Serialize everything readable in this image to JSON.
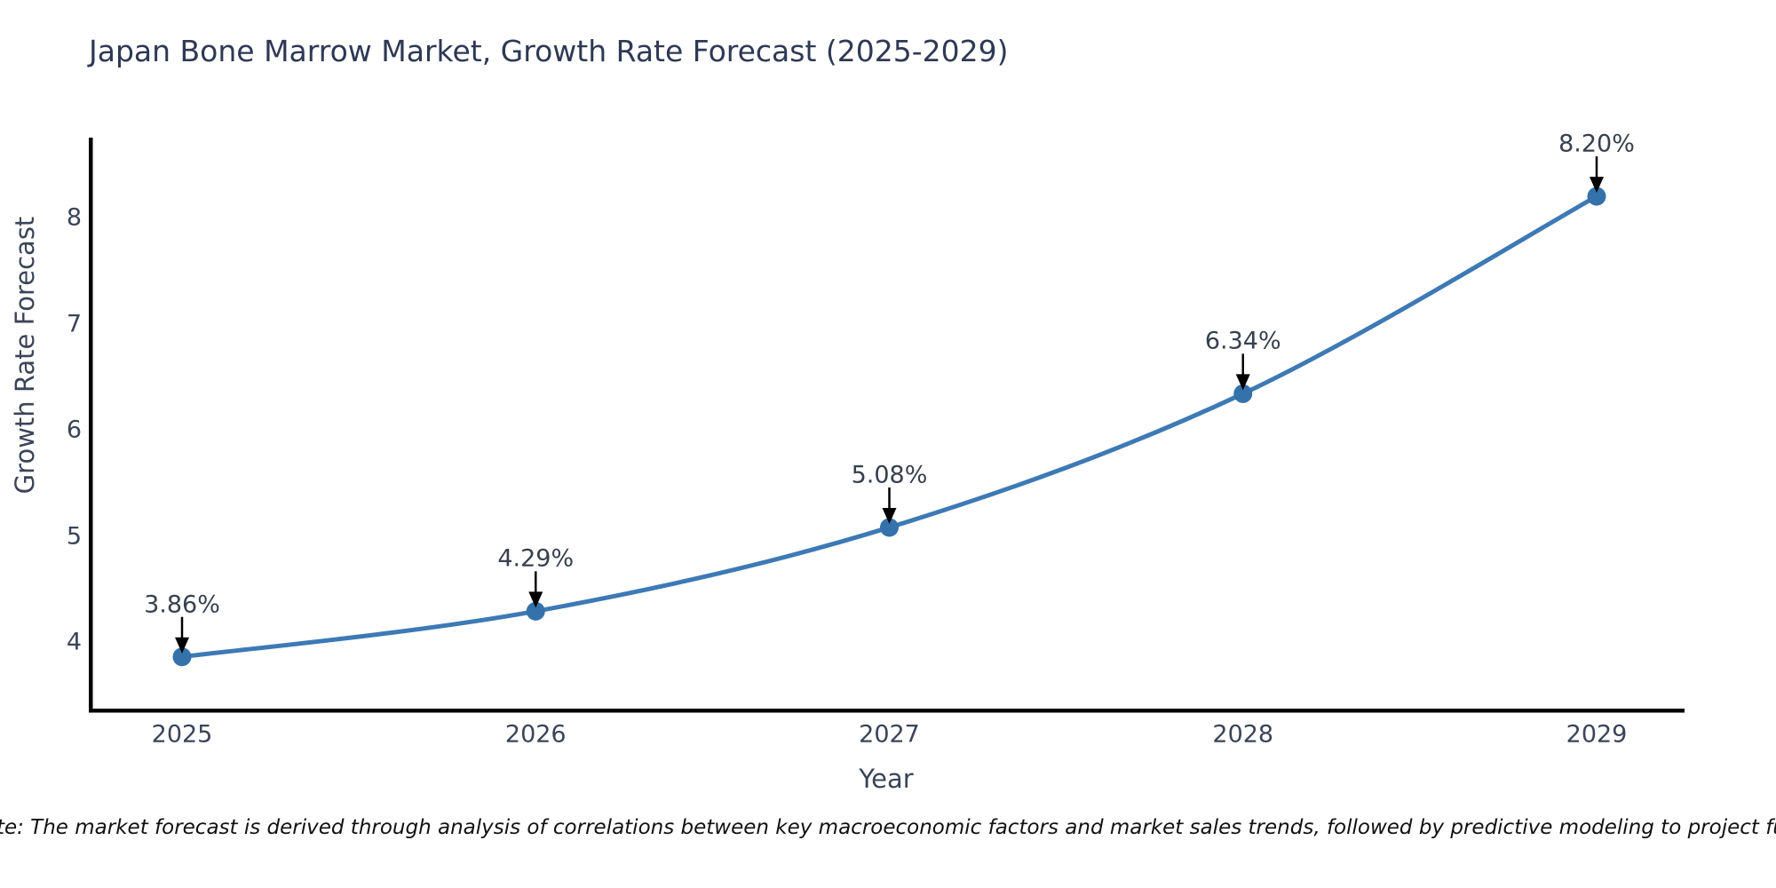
{
  "note": "Note: The market forecast is derived through analysis of correlations between key macroeconomic factors and market sales trends, followed by predictive modeling to project future sales.",
  "chart_data": {
    "type": "line",
    "title": "Japan Bone Marrow Market, Growth Rate Forecast (2025-2029)",
    "xlabel": "Year",
    "ylabel": "Growth Rate Forecast",
    "x": [
      "2025",
      "2026",
      "2027",
      "2028",
      "2029"
    ],
    "values": [
      3.86,
      4.29,
      5.08,
      6.34,
      8.2
    ],
    "point_labels": [
      "3.86%",
      "4.29%",
      "5.08%",
      "6.34%",
      "8.20%"
    ],
    "y_ticks": [
      4,
      5,
      6,
      7,
      8
    ],
    "ylim": [
      3.33,
      8.75
    ],
    "grid": false,
    "legend": false,
    "smooth_curve": true,
    "line_color": "#3d7ab5",
    "marker_color": "#3571ab",
    "spine_color": "#000000",
    "annotation_arrow_color": "#000000",
    "title_color": "#2f3854",
    "tick_label_color": "#3b4458"
  }
}
